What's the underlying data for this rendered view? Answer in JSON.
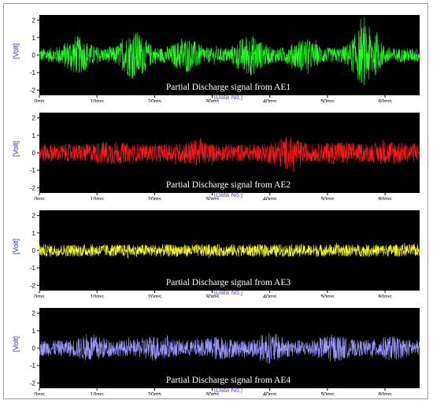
{
  "chart_data": [
    {
      "type": "line",
      "caption": "Partial Discharge signal from AE1",
      "ylabel": "[Volt]",
      "xlabel": "[Data No.]",
      "xunit": "ms",
      "xlim": [
        0,
        66
      ],
      "ylim": [
        -2.3,
        2.3
      ],
      "yticks": [
        2,
        1,
        0,
        -1,
        -2
      ],
      "xticks": [
        "0ms",
        "10ms",
        "20ms",
        "30ms",
        "40ms",
        "50ms",
        "60ms"
      ],
      "color": "#22ff22",
      "envelope": {
        "base": 0.4,
        "bursts": [
          [
            6.5,
            0.7
          ],
          [
            16.5,
            1.0
          ],
          [
            25.5,
            0.6
          ],
          [
            36.5,
            0.8
          ],
          [
            46,
            0.55
          ],
          [
            56.5,
            1.35
          ]
        ]
      }
    },
    {
      "type": "line",
      "caption": "Partial Discharge signal from AE2",
      "ylabel": "[Volt]",
      "xlabel": "[Data No.]",
      "xunit": "ms",
      "xlim": [
        0,
        66
      ],
      "ylim": [
        -2.3,
        2.3
      ],
      "yticks": [
        2,
        1,
        0,
        -1,
        -2
      ],
      "xticks": [
        "0ms",
        "10ms",
        "20ms",
        "30ms",
        "40ms",
        "50ms",
        "60ms"
      ],
      "color": "#ff1a1a",
      "envelope": {
        "base": 0.5,
        "bursts": [
          [
            12,
            0.2
          ],
          [
            27,
            0.25
          ],
          [
            43,
            0.45
          ],
          [
            52,
            0.2
          ],
          [
            61,
            0.2
          ]
        ]
      }
    },
    {
      "type": "line",
      "caption": "Partial Discharge signal from AE3",
      "ylabel": "[Volt]",
      "xlabel": "[Data No.]",
      "xunit": "ms",
      "xlim": [
        0,
        66
      ],
      "ylim": [
        -2.3,
        2.3
      ],
      "yticks": [
        2,
        1,
        0,
        -1,
        -2
      ],
      "xticks": [
        "0ms",
        "10ms",
        "20ms",
        "30ms",
        "40ms",
        "50ms",
        "60ms"
      ],
      "color": "#ffff1a",
      "envelope": {
        "base": 0.35,
        "bursts": []
      }
    },
    {
      "type": "line",
      "caption": "Partial Discharge signal from AE4",
      "ylabel": "[Volt]",
      "xlabel": "[Data No.]",
      "xunit": "ms",
      "xlim": [
        0,
        66
      ],
      "ylim": [
        -2.3,
        2.3
      ],
      "yticks": [
        2,
        1,
        0,
        -1,
        -2
      ],
      "xticks": [
        "0ms",
        "10ms",
        "20ms",
        "30ms",
        "40ms",
        "50ms",
        "60ms"
      ],
      "color": "#9a9aff",
      "envelope": {
        "base": 0.45,
        "bursts": [
          [
            9,
            0.35
          ],
          [
            20,
            0.3
          ],
          [
            31,
            0.25
          ],
          [
            40,
            0.45
          ],
          [
            51,
            0.35
          ],
          [
            61,
            0.25
          ]
        ]
      }
    }
  ]
}
